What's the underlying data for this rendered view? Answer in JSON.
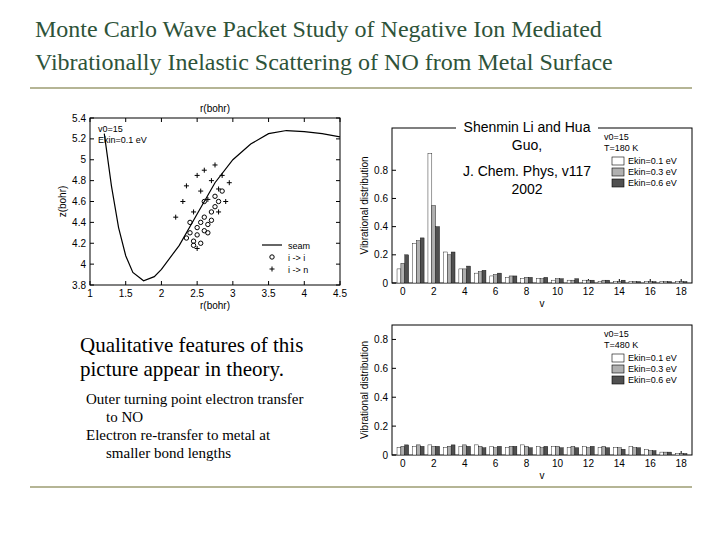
{
  "slide": {
    "title": [
      "Monte Carlo Wave Packet Study of Negative Ion Mediated",
      "Vibrationally Inelastic Scattering of NO from Metal Surface"
    ],
    "authors": [
      "Shenmin Li and Hua",
      "Guo,"
    ],
    "citation": [
      "J. Chem. Phys, v117",
      "2002"
    ],
    "text": {
      "heading": [
        "Qualitative features of this",
        "picture appear in theory."
      ],
      "points": [
        [
          "Outer turning point electron transfer",
          "to NO"
        ],
        [
          "Electron re-transfer to metal at",
          "smaller bond lengths"
        ]
      ]
    }
  },
  "chart_data": [
    {
      "type": "scatter",
      "x_label": "r(bohr)",
      "x2_label": "r(bohr)",
      "y_label": "z(bohr)",
      "annotations": [
        "v0=15",
        "Ekin=0.1 eV"
      ],
      "xlim": [
        1,
        4.5
      ],
      "ylim": [
        3.8,
        5.4
      ],
      "xticks": [
        1,
        1.5,
        2,
        2.5,
        3,
        3.5,
        4,
        4.5
      ],
      "yticks": [
        3.8,
        4,
        4.2,
        4.4,
        4.6,
        4.8,
        5,
        5.2,
        5.4
      ],
      "legend": "lower right",
      "series": [
        {
          "name": "seam",
          "type": "line",
          "line_style": "solid",
          "color": "#000000",
          "x": [
            1.2,
            1.3,
            1.4,
            1.5,
            1.6,
            1.75,
            1.9,
            2.0,
            2.25,
            2.5,
            2.75,
            3.0,
            3.25,
            3.5,
            3.75,
            4.0,
            4.25,
            4.5
          ],
          "values": [
            5.25,
            4.75,
            4.35,
            4.08,
            3.92,
            3.84,
            3.88,
            3.95,
            4.18,
            4.48,
            4.78,
            5.0,
            5.15,
            5.25,
            5.28,
            5.27,
            5.25,
            5.22
          ]
        },
        {
          "name": "i -> i",
          "type": "scatter",
          "marker": "circle",
          "color": "#000000",
          "x": [
            2.35,
            2.4,
            2.45,
            2.5,
            2.5,
            2.55,
            2.6,
            2.6,
            2.65,
            2.7,
            2.7,
            2.75,
            2.8,
            2.45,
            2.55,
            2.65,
            2.85,
            2.4,
            2.6,
            2.75
          ],
          "values": [
            4.25,
            4.3,
            4.22,
            4.35,
            4.28,
            4.4,
            4.32,
            4.45,
            4.38,
            4.5,
            4.42,
            4.55,
            4.6,
            4.18,
            4.2,
            4.3,
            4.7,
            4.4,
            4.6,
            4.65
          ]
        },
        {
          "name": "i -> n",
          "type": "scatter",
          "marker": "plus",
          "color": "#000000",
          "x": [
            2.3,
            2.35,
            2.5,
            2.55,
            2.6,
            2.7,
            2.75,
            2.8,
            2.85,
            2.9,
            2.45,
            2.65,
            2.95,
            2.5,
            2.8,
            2.2
          ],
          "values": [
            4.6,
            4.75,
            4.85,
            4.7,
            4.9,
            4.8,
            4.95,
            4.72,
            4.85,
            4.6,
            4.5,
            4.62,
            4.78,
            4.15,
            4.5,
            4.45
          ]
        }
      ]
    },
    {
      "type": "bar",
      "x_label": "v",
      "y_label": "Vibrational distribution",
      "annotations": [
        "v0=15",
        "T=180 K"
      ],
      "x": [
        0,
        1,
        2,
        3,
        4,
        5,
        6,
        7,
        8,
        9,
        10,
        11,
        12,
        13,
        14,
        15,
        16,
        17,
        18
      ],
      "xlim": [
        -0.7,
        18.7
      ],
      "xticks": [
        0,
        2,
        4,
        6,
        8,
        10,
        12,
        14,
        16,
        18
      ],
      "ylim": [
        0,
        1.1
      ],
      "yticks": [
        0,
        0.2,
        0.4,
        0.6,
        0.8
      ],
      "legend": "upper right",
      "series": [
        {
          "name": "Ekin=0.1 eV",
          "color": "#ffffff",
          "values": [
            0.1,
            0.28,
            0.92,
            0.22,
            0.1,
            0.07,
            0.05,
            0.04,
            0.03,
            0.03,
            0.02,
            0.02,
            0.02,
            0.01,
            0.01,
            0.01,
            0.01,
            0.01,
            0.01
          ]
        },
        {
          "name": "Ekin=0.3 eV",
          "color": "#b0b0b0",
          "values": [
            0.14,
            0.3,
            0.55,
            0.2,
            0.1,
            0.08,
            0.06,
            0.05,
            0.04,
            0.03,
            0.03,
            0.02,
            0.02,
            0.02,
            0.01,
            0.01,
            0.01,
            0.01,
            0.01
          ]
        },
        {
          "name": "Ekin=0.6 eV",
          "color": "#505050",
          "values": [
            0.2,
            0.32,
            0.4,
            0.22,
            0.12,
            0.09,
            0.07,
            0.05,
            0.04,
            0.04,
            0.03,
            0.03,
            0.02,
            0.02,
            0.02,
            0.01,
            0.01,
            0.01,
            0.01
          ]
        }
      ]
    },
    {
      "type": "bar",
      "x_label": "v",
      "y_label": "Vibrational distribution",
      "annotations": [
        "v0=15",
        "T=480 K"
      ],
      "x": [
        0,
        1,
        2,
        3,
        4,
        5,
        6,
        7,
        8,
        9,
        10,
        11,
        12,
        13,
        14,
        15,
        16,
        17,
        18
      ],
      "xlim": [
        -0.7,
        18.7
      ],
      "xticks": [
        0,
        2,
        4,
        6,
        8,
        10,
        12,
        14,
        16,
        18
      ],
      "ylim": [
        0,
        0.9
      ],
      "yticks": [
        0,
        0.2,
        0.4,
        0.6,
        0.8
      ],
      "legend": "upper right",
      "series": [
        {
          "name": "Ekin=0.1 eV",
          "color": "#ffffff",
          "values": [
            0.05,
            0.06,
            0.07,
            0.05,
            0.06,
            0.07,
            0.06,
            0.05,
            0.07,
            0.06,
            0.06,
            0.05,
            0.06,
            0.05,
            0.05,
            0.06,
            0.04,
            0.02,
            0.01
          ]
        },
        {
          "name": "Ekin=0.3 eV",
          "color": "#b0b0b0",
          "values": [
            0.06,
            0.07,
            0.06,
            0.06,
            0.07,
            0.06,
            0.05,
            0.06,
            0.06,
            0.05,
            0.06,
            0.06,
            0.05,
            0.06,
            0.05,
            0.05,
            0.03,
            0.02,
            0.01
          ]
        },
        {
          "name": "Ekin=0.6 eV",
          "color": "#505050",
          "values": [
            0.07,
            0.06,
            0.06,
            0.07,
            0.06,
            0.05,
            0.06,
            0.06,
            0.05,
            0.06,
            0.05,
            0.05,
            0.06,
            0.05,
            0.04,
            0.05,
            0.03,
            0.02,
            0.01
          ]
        }
      ]
    }
  ]
}
